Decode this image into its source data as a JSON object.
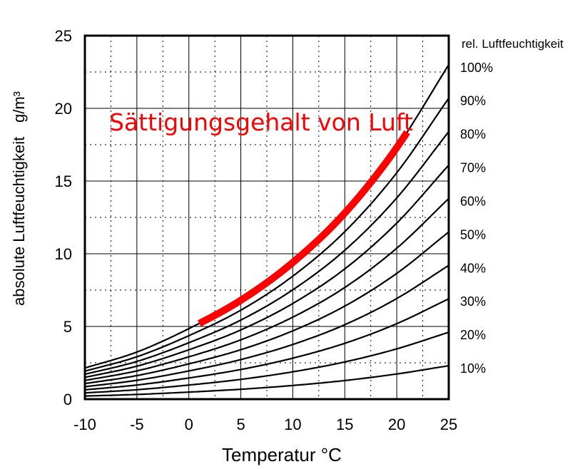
{
  "chart_data": {
    "type": "line",
    "xlabel": "Temperatur   °C",
    "ylabel_left": "absolute Luftfeuchtigkeit",
    "ylabel_unit": "g/m³",
    "right_axis_title": "rel. Luftfeuchtigkeit",
    "xlim": [
      -10,
      25
    ],
    "ylim": [
      0,
      25
    ],
    "x_ticks": [
      "-10",
      "-5",
      "0",
      "5",
      "10",
      "15",
      "20",
      "25"
    ],
    "y_ticks": [
      "0",
      "5",
      "10",
      "15",
      "20",
      "25"
    ],
    "x_values": [
      -10,
      -5,
      0,
      5,
      10,
      15,
      20,
      25
    ],
    "saturation_values": [
      2.14,
      3.24,
      4.85,
      6.8,
      9.4,
      12.8,
      17.3,
      23.0
    ],
    "series": [
      {
        "name": "10%",
        "fraction": 0.1
      },
      {
        "name": "20%",
        "fraction": 0.2
      },
      {
        "name": "30%",
        "fraction": 0.3
      },
      {
        "name": "40%",
        "fraction": 0.4
      },
      {
        "name": "50%",
        "fraction": 0.5
      },
      {
        "name": "60%",
        "fraction": 0.6
      },
      {
        "name": "70%",
        "fraction": 0.7
      },
      {
        "name": "80%",
        "fraction": 0.8
      },
      {
        "name": "90%",
        "fraction": 0.9
      },
      {
        "name": "100%",
        "fraction": 1.0
      }
    ],
    "highlight": {
      "label": "Sättigungsgehalt von Luft",
      "x_range": [
        1,
        21
      ],
      "color": "#ff0000"
    },
    "grid": true,
    "grid_minor_x": true,
    "grid_minor_y": true
  }
}
